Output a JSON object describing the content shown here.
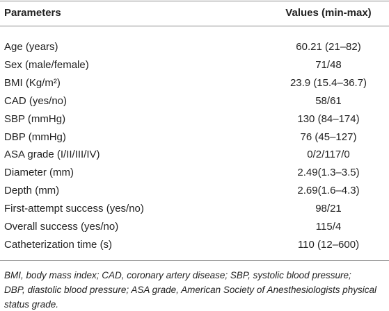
{
  "table": {
    "header": [
      "Parameters",
      "Values (min-max)"
    ],
    "rows": [
      [
        "Age (years)",
        "60.21 (21–82)"
      ],
      [
        "Sex (male/female)",
        "71/48"
      ],
      [
        "BMI (Kg/m²)",
        "23.9 (15.4–36.7)"
      ],
      [
        "CAD (yes/no)",
        "58/61"
      ],
      [
        "SBP (mmHg)",
        "130 (84–174)"
      ],
      [
        "DBP (mmHg)",
        "76 (45–127)"
      ],
      [
        "ASA grade (I/II/III/IV)",
        "0/2/117/0"
      ],
      [
        "Diameter (mm)",
        "2.49(1.3–3.5)"
      ],
      [
        "Depth (mm)",
        "2.69(1.6–4.3)"
      ],
      [
        "First-attempt success (yes/no)",
        "98/21"
      ],
      [
        "Overall success (yes/no)",
        "115/4"
      ],
      [
        "Catheterization time (s)",
        "110 (12–600)"
      ]
    ],
    "footnote": [
      "BMI, body mass index; CAD, coronary artery disease; SBP, systolic blood pressure;",
      "DBP, diastolic blood pressure; ASA grade, American Society of Anesthesiologists physical",
      "status grade."
    ]
  }
}
